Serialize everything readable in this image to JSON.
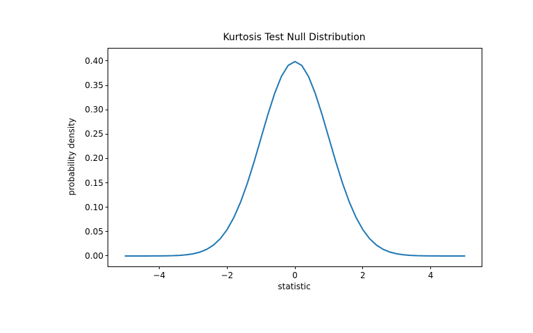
{
  "chart_data": {
    "type": "line",
    "title": "Kurtosis Test Null Distribution",
    "xlabel": "statistic",
    "ylabel": "probability density",
    "xlim": [
      -5.5,
      5.5
    ],
    "ylim": [
      -0.0214,
      0.4256
    ],
    "x_ticks": [
      -4,
      -2,
      0,
      2,
      4
    ],
    "x_tick_labels": [
      "−4",
      "−2",
      "0",
      "2",
      "4"
    ],
    "y_ticks": [
      0.0,
      0.05,
      0.1,
      0.15,
      0.2,
      0.25,
      0.3,
      0.35,
      0.4
    ],
    "y_tick_labels": [
      "0.00",
      "0.05",
      "0.10",
      "0.15",
      "0.20",
      "0.25",
      "0.30",
      "0.35",
      "0.40"
    ],
    "grid": false,
    "legend": "none",
    "line_color": "#1f77b4",
    "line_width": 2,
    "frame_color": "#000000",
    "background_color": "#ffffff",
    "series": [
      {
        "name": "standard normal pdf",
        "x": [
          -5.0,
          -4.8,
          -4.6,
          -4.4,
          -4.2,
          -4.0,
          -3.8,
          -3.6,
          -3.4,
          -3.2,
          -3.0,
          -2.8,
          -2.6,
          -2.4,
          -2.2,
          -2.0,
          -1.8,
          -1.6,
          -1.4,
          -1.2,
          -1.0,
          -0.8,
          -0.6,
          -0.4,
          -0.2,
          0.0,
          0.2,
          0.4,
          0.6,
          0.8,
          1.0,
          1.2,
          1.4,
          1.6,
          1.8,
          2.0,
          2.2,
          2.4,
          2.6,
          2.8,
          3.0,
          3.2,
          3.4,
          3.6,
          3.8,
          4.0,
          4.2,
          4.4,
          4.6,
          4.8,
          5.0
        ],
        "y": [
          0.0,
          0.0,
          1e-05,
          2e-05,
          6e-05,
          0.00013,
          0.00029,
          0.00061,
          0.00123,
          0.00238,
          0.00443,
          0.00792,
          0.01358,
          0.02239,
          0.03547,
          0.05399,
          0.07895,
          0.11092,
          0.14973,
          0.19419,
          0.24197,
          0.28969,
          0.33322,
          0.36827,
          0.39104,
          0.39894,
          0.39104,
          0.36827,
          0.33322,
          0.28969,
          0.24197,
          0.19419,
          0.14973,
          0.11092,
          0.07895,
          0.05399,
          0.03547,
          0.02239,
          0.01358,
          0.00792,
          0.00443,
          0.00238,
          0.00123,
          0.00061,
          0.00029,
          0.00013,
          6e-05,
          2e-05,
          1e-05,
          0.0,
          0.0
        ]
      }
    ]
  }
}
